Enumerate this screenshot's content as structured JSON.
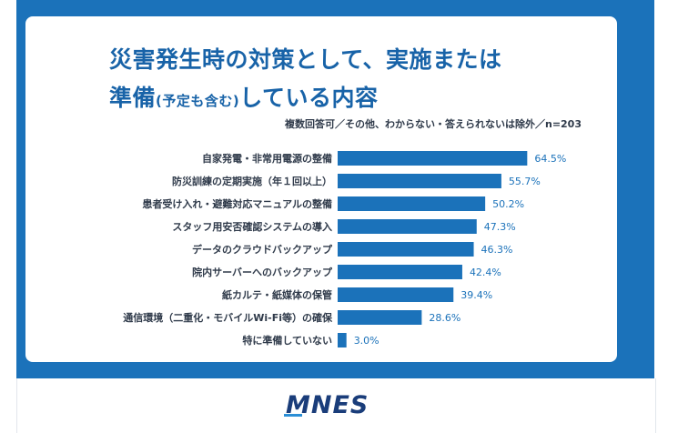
{
  "title": {
    "line1": "災害発生時の対策として、実施または",
    "line2_main": "準備",
    "line2_paren": "(予定も含む)",
    "line2_tail": "している内容"
  },
  "subtitle": "複数回答可／その他、わからない・答えられないは除外／n=203",
  "logo": "MNES",
  "colors": {
    "frame": "#1b72ba",
    "bar": "#1b72ba",
    "title": "#1863a8",
    "value": "#1b72ba"
  },
  "chart_data": {
    "type": "bar",
    "orientation": "horizontal",
    "unit": "%",
    "categories": [
      "自家発電・非常用電源の整備",
      "防災訓練の定期実施（年１回以上）",
      "患者受け入れ・避難対応マニュアルの整備",
      "スタッフ用安否確認システムの導入",
      "データのクラウドバックアップ",
      "院内サーバーへのバックアップ",
      "紙カルテ・紙媒体の保管",
      "通信環境（二重化・モバイルWi-Fi等）の確保",
      "特に準備していない"
    ],
    "values": [
      64.5,
      55.7,
      50.2,
      47.3,
      46.3,
      42.4,
      39.4,
      28.6,
      3.0
    ],
    "value_labels": [
      "64.5%",
      "55.7%",
      "50.2%",
      "47.3%",
      "46.3%",
      "42.4%",
      "39.4%",
      "28.6%",
      "3.0%"
    ],
    "xlim": [
      0,
      100
    ],
    "grid": false,
    "legend": "none"
  }
}
